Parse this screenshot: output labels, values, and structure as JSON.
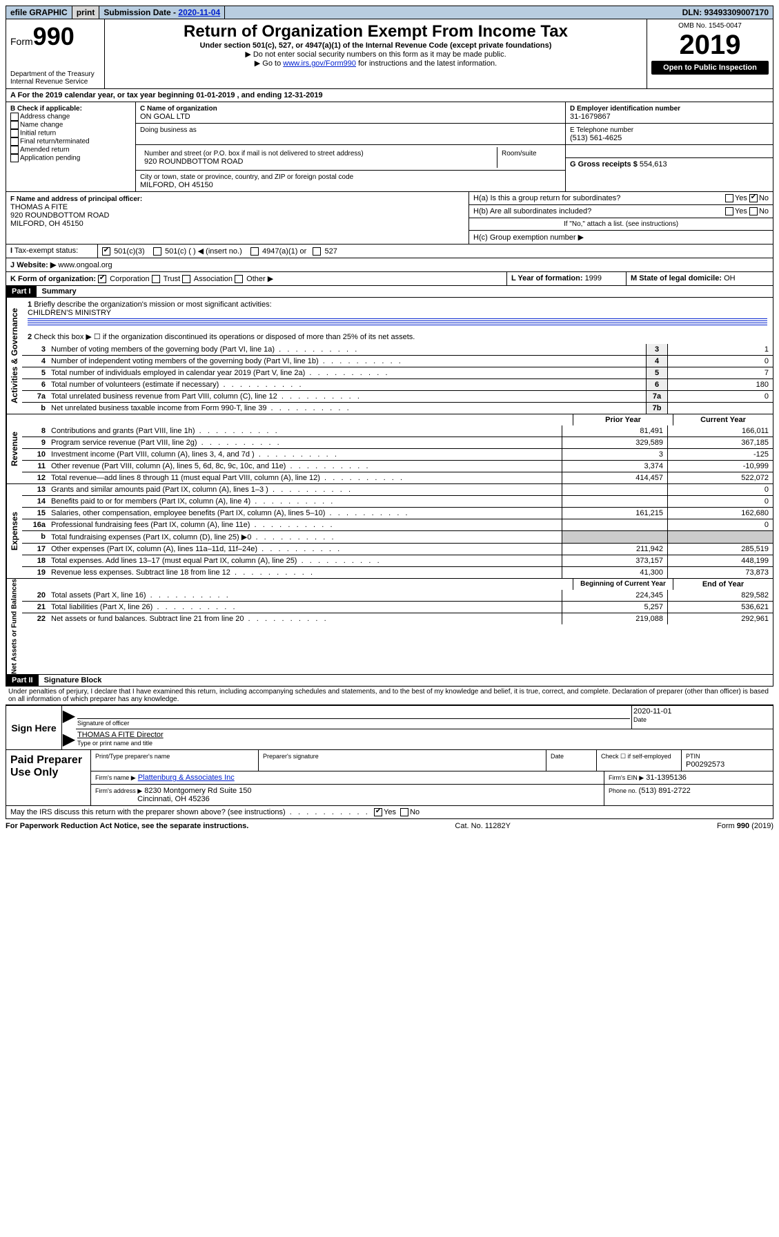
{
  "topbar": {
    "efile": "efile GRAPHIC",
    "print": "print",
    "subdate_label": "Submission Date - ",
    "subdate": "2020-11-04",
    "dln": "DLN: 93493309007170"
  },
  "header": {
    "form_prefix": "Form",
    "form_number": "990",
    "dept1": "Department of the Treasury",
    "dept2": "Internal Revenue Service",
    "title": "Return of Organization Exempt From Income Tax",
    "subtitle": "Under section 501(c), 527, or 4947(a)(1) of the Internal Revenue Code (except private foundations)",
    "note1": "▶ Do not enter social security numbers on this form as it may be made public.",
    "note2a": "▶ Go to ",
    "note2_link": "www.irs.gov/Form990",
    "note2b": " for instructions and the latest information.",
    "omb": "OMB No. 1545-0047",
    "year": "2019",
    "open": "Open to Public Inspection"
  },
  "line_a": "A For the 2019 calendar year, or tax year beginning 01-01-2019   , and ending 12-31-2019",
  "box_b": {
    "label": "B Check if applicable:",
    "opts": [
      "Address change",
      "Name change",
      "Initial return",
      "Final return/terminated",
      "Amended return",
      "Application pending"
    ]
  },
  "box_c": {
    "name_label": "C Name of organization",
    "name": "ON GOAL LTD",
    "dba_label": "Doing business as",
    "addr_label": "Number and street (or P.O. box if mail is not delivered to street address)",
    "room_label": "Room/suite",
    "addr": "920 ROUNDBOTTOM ROAD",
    "city_label": "City or town, state or province, country, and ZIP or foreign postal code",
    "city": "MILFORD, OH  45150"
  },
  "box_d": {
    "label": "D Employer identification number",
    "val": "31-1679867"
  },
  "box_e": {
    "label": "E Telephone number",
    "val": "(513) 561-4625"
  },
  "box_g": {
    "label": "G Gross receipts $ ",
    "val": "554,613"
  },
  "box_f": {
    "label": "F Name and address of principal officer:",
    "name": "THOMAS A FITE",
    "addr1": "920 ROUNDBOTTOM ROAD",
    "addr2": "MILFORD, OH  45150"
  },
  "box_h": {
    "a": "H(a) Is this a group return for subordinates?",
    "b": "H(b) Are all subordinates included?",
    "bnote": "If \"No,\" attach a list. (see instructions)",
    "c": "H(c) Group exemption number ▶",
    "yes": "Yes",
    "no": "No"
  },
  "tax_exempt": {
    "label": "Tax-exempt status:",
    "o1": "501(c)(3)",
    "o2": "501(c) (  ) ◀ (insert no.)",
    "o3": "4947(a)(1) or",
    "o4": "527"
  },
  "website": {
    "label": "Website: ▶",
    "val": "www.ongoal.org"
  },
  "box_k": {
    "label": "K Form of organization:",
    "o1": "Corporation",
    "o2": "Trust",
    "o3": "Association",
    "o4": "Other ▶"
  },
  "box_l": {
    "label": "L Year of formation: ",
    "val": "1999"
  },
  "box_m": {
    "label": "M State of legal domicile: ",
    "val": "OH"
  },
  "part1": {
    "header": "Part I",
    "title": "Summary"
  },
  "summary": {
    "q1": "Briefly describe the organization's mission or most significant activities:",
    "q1_text": "CHILDREN'S MINISTRY",
    "q2": "Check this box ▶ ☐ if the organization discontinued its operations or disposed of more than 25% of its net assets.",
    "rows": [
      {
        "n": "3",
        "d": "Number of voting members of the governing body (Part VI, line 1a)",
        "box": "3",
        "v": "1"
      },
      {
        "n": "4",
        "d": "Number of independent voting members of the governing body (Part VI, line 1b)",
        "box": "4",
        "v": "0"
      },
      {
        "n": "5",
        "d": "Total number of individuals employed in calendar year 2019 (Part V, line 2a)",
        "box": "5",
        "v": "7"
      },
      {
        "n": "6",
        "d": "Total number of volunteers (estimate if necessary)",
        "box": "6",
        "v": "180"
      },
      {
        "n": "7a",
        "d": "Total unrelated business revenue from Part VIII, column (C), line 12",
        "box": "7a",
        "v": "0"
      },
      {
        "n": "b",
        "d": "Net unrelated business taxable income from Form 990-T, line 39",
        "box": "7b",
        "v": ""
      }
    ],
    "col_prior": "Prior Year",
    "col_current": "Current Year",
    "col_beg": "Beginning of Current Year",
    "col_end": "End of Year",
    "revenue": [
      {
        "n": "8",
        "d": "Contributions and grants (Part VIII, line 1h)",
        "p": "81,491",
        "c": "166,011"
      },
      {
        "n": "9",
        "d": "Program service revenue (Part VIII, line 2g)",
        "p": "329,589",
        "c": "367,185"
      },
      {
        "n": "10",
        "d": "Investment income (Part VIII, column (A), lines 3, 4, and 7d )",
        "p": "3",
        "c": "-125"
      },
      {
        "n": "11",
        "d": "Other revenue (Part VIII, column (A), lines 5, 6d, 8c, 9c, 10c, and 11e)",
        "p": "3,374",
        "c": "-10,999"
      },
      {
        "n": "12",
        "d": "Total revenue—add lines 8 through 11 (must equal Part VIII, column (A), line 12)",
        "p": "414,457",
        "c": "522,072"
      }
    ],
    "expenses": [
      {
        "n": "13",
        "d": "Grants and similar amounts paid (Part IX, column (A), lines 1–3 )",
        "p": "",
        "c": "0"
      },
      {
        "n": "14",
        "d": "Benefits paid to or for members (Part IX, column (A), line 4)",
        "p": "",
        "c": "0"
      },
      {
        "n": "15",
        "d": "Salaries, other compensation, employee benefits (Part IX, column (A), lines 5–10)",
        "p": "161,215",
        "c": "162,680"
      },
      {
        "n": "16a",
        "d": "Professional fundraising fees (Part IX, column (A), line 11e)",
        "p": "",
        "c": "0"
      },
      {
        "n": "b",
        "d": "Total fundraising expenses (Part IX, column (D), line 25) ▶0",
        "p": "GREY",
        "c": "GREY"
      },
      {
        "n": "17",
        "d": "Other expenses (Part IX, column (A), lines 11a–11d, 11f–24e)",
        "p": "211,942",
        "c": "285,519"
      },
      {
        "n": "18",
        "d": "Total expenses. Add lines 13–17 (must equal Part IX, column (A), line 25)",
        "p": "373,157",
        "c": "448,199"
      },
      {
        "n": "19",
        "d": "Revenue less expenses. Subtract line 18 from line 12",
        "p": "41,300",
        "c": "73,873"
      }
    ],
    "netassets": [
      {
        "n": "20",
        "d": "Total assets (Part X, line 16)",
        "p": "224,345",
        "c": "829,582"
      },
      {
        "n": "21",
        "d": "Total liabilities (Part X, line 26)",
        "p": "5,257",
        "c": "536,621"
      },
      {
        "n": "22",
        "d": "Net assets or fund balances. Subtract line 21 from line 20",
        "p": "219,088",
        "c": "292,961"
      }
    ]
  },
  "side": {
    "gov": "Activities & Governance",
    "rev": "Revenue",
    "exp": "Expenses",
    "net": "Net Assets or Fund Balances"
  },
  "part2": {
    "header": "Part II",
    "title": "Signature Block"
  },
  "perjury": "Under penalties of perjury, I declare that I have examined this return, including accompanying schedules and statements, and to the best of my knowledge and belief, it is true, correct, and complete. Declaration of preparer (other than officer) is based on all information of which preparer has any knowledge.",
  "sign": {
    "here": "Sign Here",
    "sig_label": "Signature of officer",
    "date_label": "Date",
    "date_val": "2020-11-01",
    "name": "THOMAS A FITE  Director",
    "name_label": "Type or print name and title"
  },
  "preparer": {
    "title": "Paid Preparer Use Only",
    "pname_label": "Print/Type preparer's name",
    "psig_label": "Preparer's signature",
    "pdate_label": "Date",
    "check_label": "Check ☐ if self-employed",
    "ptin_label": "PTIN",
    "ptin": "P00292573",
    "firm_name_label": "Firm's name    ▶",
    "firm_name": "Plattenburg & Associates Inc",
    "ein_label": "Firm's EIN ▶",
    "ein": "31-1395136",
    "firm_addr_label": "Firm's address ▶",
    "firm_addr1": "8230 Montgomery Rd Suite 150",
    "firm_addr2": "Cincinnati, OH  45236",
    "phone_label": "Phone no. ",
    "phone": "(513) 891-2722"
  },
  "discuss": {
    "q": "May the IRS discuss this return with the preparer shown above? (see instructions)",
    "yes": "Yes",
    "no": "No"
  },
  "footer": {
    "paperwork": "For Paperwork Reduction Act Notice, see the separate instructions.",
    "cat": "Cat. No. 11282Y",
    "form": "Form 990 (2019)"
  }
}
